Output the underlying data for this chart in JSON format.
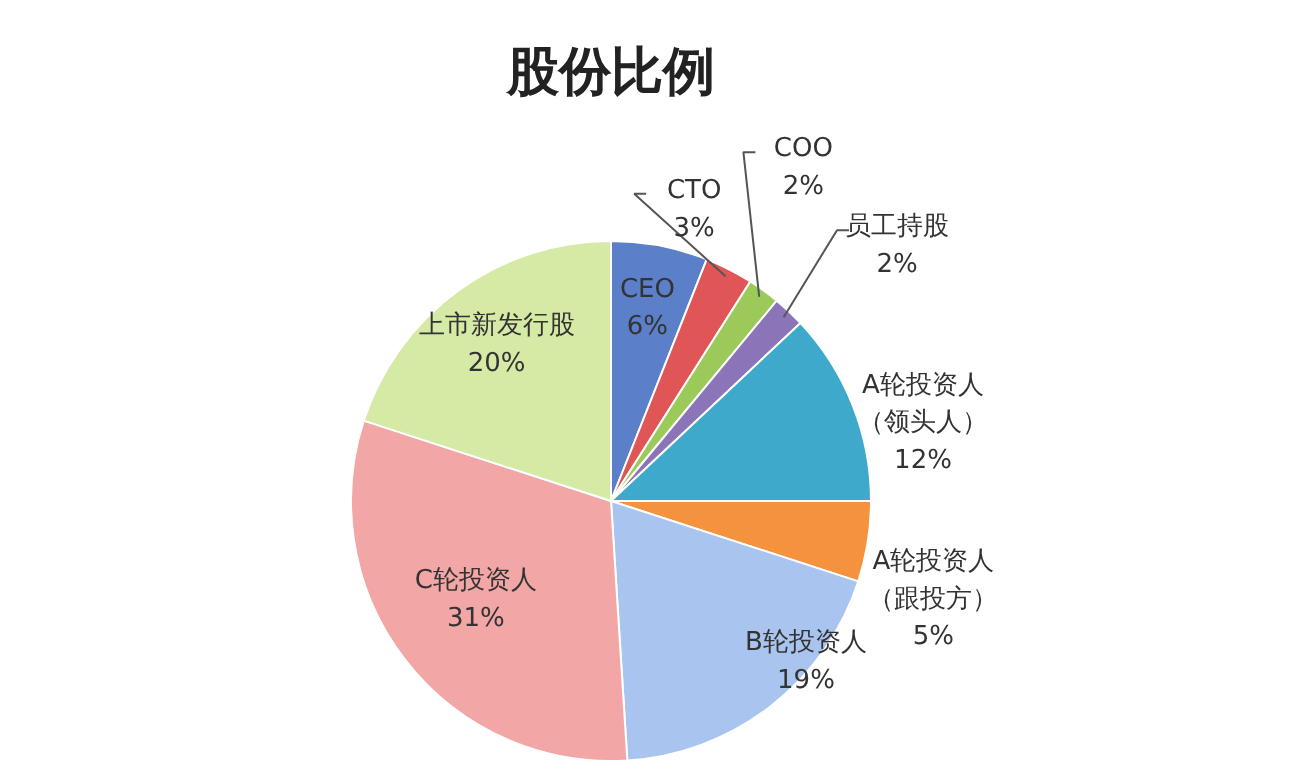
{
  "chart_data": {
    "type": "pie",
    "title": "股份比例",
    "categories": [
      "CEO",
      "CTO",
      "COO",
      "员工持股",
      "A轮投资人（领头人）",
      "A轮投资人（跟投方）",
      "B轮投资人",
      "C轮投资人",
      "上市新发行股"
    ],
    "values": [
      6,
      3,
      2,
      2,
      12,
      5,
      19,
      31,
      20
    ],
    "value_labels": [
      "6%",
      "3%",
      "2%",
      "2%",
      "12%",
      "5%",
      "19%",
      "31%",
      "20%"
    ],
    "colors": [
      "#5b7fc8",
      "#e05555",
      "#9bc95a",
      "#8b74b8",
      "#3fa9cc",
      "#f5923e",
      "#a9c4ee",
      "#f2a6a6",
      "#d5eaa5"
    ]
  }
}
